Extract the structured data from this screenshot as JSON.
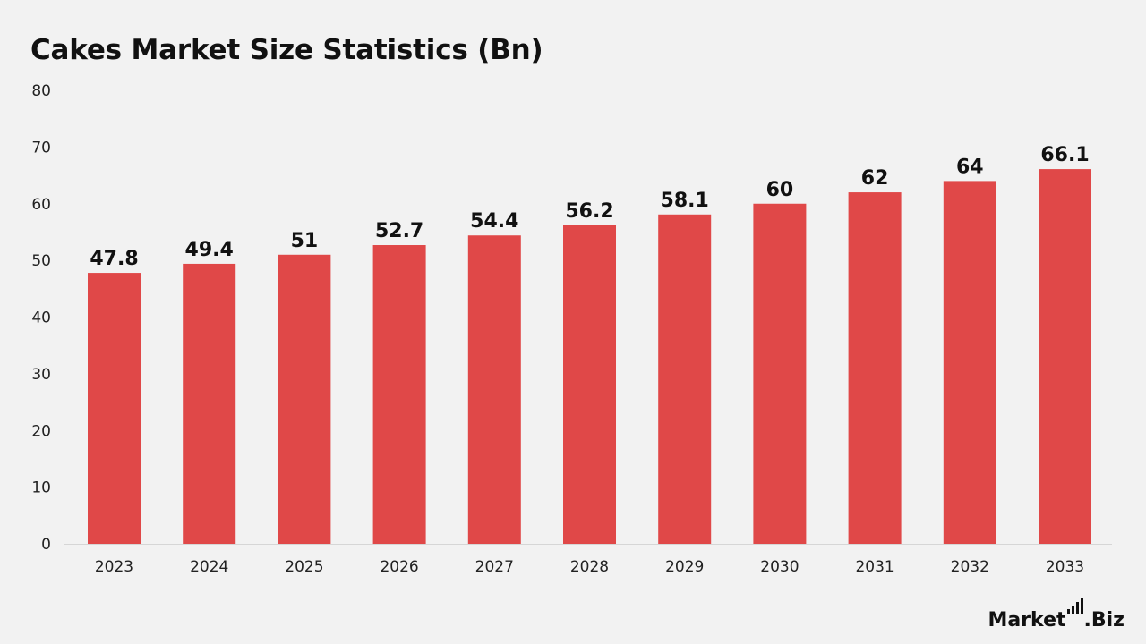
{
  "chart_data": {
    "type": "bar",
    "title": "Cakes Market Size Statistics (Bn)",
    "categories": [
      "2023",
      "2024",
      "2025",
      "2026",
      "2027",
      "2028",
      "2029",
      "2030",
      "2031",
      "2032",
      "2033"
    ],
    "values": [
      47.8,
      49.4,
      51,
      52.7,
      54.4,
      56.2,
      58.1,
      60,
      62,
      64,
      66.1
    ],
    "data_labels": [
      "47.8",
      "49.4",
      "51",
      "52.7",
      "54.4",
      "56.2",
      "58.1",
      "60",
      "62",
      "64",
      "66.1"
    ],
    "xlabel": "",
    "ylabel": "",
    "ylim": [
      0,
      80
    ],
    "y_ticks": [
      "0",
      "10",
      "20",
      "30",
      "40",
      "50",
      "60",
      "70",
      "80"
    ],
    "grid": false,
    "legend": "none",
    "bar_color": "#e04848"
  },
  "brand": {
    "name_part1": "Market",
    "name_part2": ".Biz",
    "icon": "bar-chart-logo-icon"
  }
}
